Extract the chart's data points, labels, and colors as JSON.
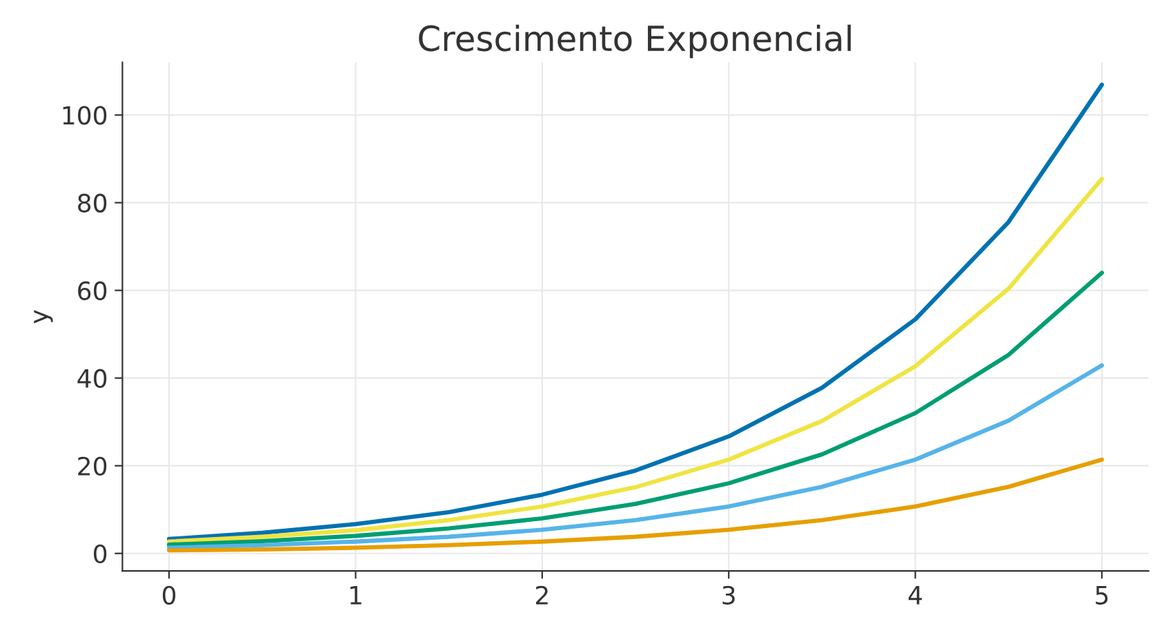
{
  "chart_data": {
    "type": "line",
    "title": "Crescimento Exponencial",
    "ylabel": "y",
    "x": [
      0,
      0.5,
      1,
      1.5,
      2,
      2.5,
      3,
      3.5,
      4,
      4.5,
      5
    ],
    "series": [
      {
        "color": "#0072b2",
        "values": [
          3.3,
          4.7,
          6.7,
          9.4,
          13.4,
          18.9,
          26.7,
          37.8,
          53.4,
          75.6,
          106.9
        ]
      },
      {
        "color": "#f0e442",
        "values": [
          2.7,
          3.8,
          5.3,
          7.6,
          10.7,
          15.1,
          21.4,
          30.2,
          42.7,
          60.4,
          85.4
        ]
      },
      {
        "color": "#009e73",
        "values": [
          2.0,
          2.8,
          4.0,
          5.7,
          8.0,
          11.3,
          16.0,
          22.6,
          32.0,
          45.3,
          64.0
        ]
      },
      {
        "color": "#56b4e9",
        "values": [
          1.3,
          1.9,
          2.7,
          3.8,
          5.4,
          7.6,
          10.7,
          15.2,
          21.4,
          30.3,
          42.9
        ]
      },
      {
        "color": "#e69f00",
        "values": [
          0.7,
          0.9,
          1.3,
          1.9,
          2.7,
          3.8,
          5.4,
          7.6,
          10.7,
          15.2,
          21.4
        ]
      }
    ],
    "xlim": [
      -0.25,
      5.25
    ],
    "ylim": [
      -4,
      112
    ],
    "xticks": [
      0,
      1,
      2,
      3,
      4,
      5
    ],
    "yticks": [
      0,
      20,
      40,
      60,
      80,
      100
    ],
    "grid": true,
    "marker": "none",
    "line_style": "solid"
  }
}
